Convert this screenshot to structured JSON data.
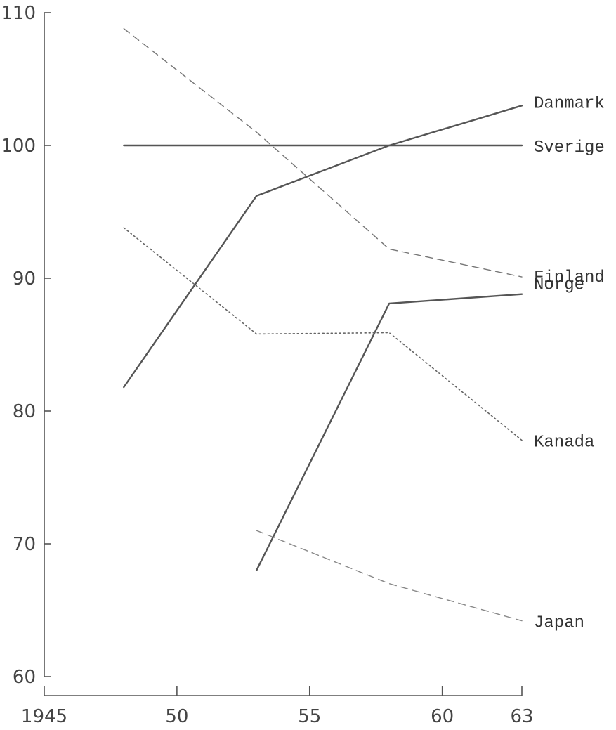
{
  "chart_data": {
    "type": "line",
    "title": "",
    "xlabel": "",
    "ylabel": "",
    "xlim": [
      1945,
      63
    ],
    "ylim": [
      60,
      110
    ],
    "x_ticks": [
      1945,
      1950,
      1955,
      1960,
      1963
    ],
    "x_tick_labels": [
      "1945",
      "50",
      "55",
      "60",
      "63"
    ],
    "y_ticks": [
      60,
      70,
      80,
      90,
      100,
      110
    ],
    "y_tick_labels": [
      "60",
      "70",
      "80",
      "90",
      "100",
      "110"
    ],
    "grid": false,
    "legend": "none",
    "series": [
      {
        "name": "Danmark",
        "style": "solid",
        "color": "#555555",
        "x": [
          1948,
          1953,
          1958,
          1963
        ],
        "y": [
          81.8,
          96.2,
          100.0,
          103.0
        ]
      },
      {
        "name": "Sverige",
        "style": "solid",
        "color": "#555555",
        "x": [
          1948,
          1953,
          1958,
          1963
        ],
        "y": [
          100.0,
          100.0,
          100.0,
          100.0
        ]
      },
      {
        "name": "Finland",
        "style": "dashed",
        "color": "#777777",
        "x": [
          1948,
          1953,
          1958,
          1963
        ],
        "y": [
          108.8,
          101.0,
          92.2,
          90.1
        ]
      },
      {
        "name": "Norge",
        "style": "solid",
        "color": "#555555",
        "x": [
          1953,
          1958,
          1963
        ],
        "y": [
          68.0,
          88.1,
          88.8
        ]
      },
      {
        "name": "Kanada",
        "style": "dotted",
        "color": "#666666",
        "x": [
          1948,
          1953,
          1958,
          1963
        ],
        "y": [
          93.8,
          85.8,
          85.9,
          77.8
        ]
      },
      {
        "name": "Japan",
        "style": "dashed",
        "color": "#888888",
        "x": [
          1953,
          1958,
          1963
        ],
        "y": [
          71.0,
          67.0,
          64.2
        ]
      }
    ]
  }
}
